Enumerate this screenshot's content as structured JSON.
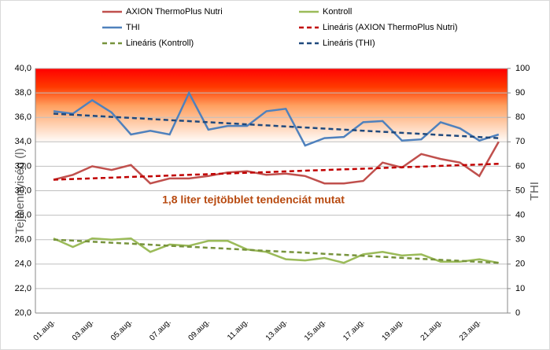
{
  "chart_data": {
    "type": "line",
    "categories": [
      "01.aug.",
      null,
      "03.aug.",
      null,
      "05.aug.",
      null,
      "07.aug.",
      null,
      "09.aug.",
      null,
      "11.aug.",
      null,
      "13.aug.",
      null,
      "15.aug.",
      null,
      "17.aug.",
      null,
      "19.aug.",
      null,
      "21.aug.",
      null,
      "23.aug.",
      null
    ],
    "series": [
      {
        "name": "AXION ThermoPlus Nutri",
        "color": "#c0504d",
        "dashed": false,
        "values": [
          30.9,
          31.3,
          32.0,
          31.7,
          32.1,
          30.6,
          31.0,
          31.0,
          31.2,
          31.5,
          31.6,
          31.3,
          31.4,
          31.2,
          30.6,
          30.6,
          30.8,
          32.3,
          31.9,
          33.0,
          32.6,
          32.3,
          31.2,
          34.0
        ]
      },
      {
        "name": "Kontroll",
        "color": "#9bbb59",
        "dashed": false,
        "values": [
          26.1,
          25.4,
          26.1,
          26.0,
          26.1,
          25.0,
          25.6,
          25.5,
          25.9,
          25.9,
          25.2,
          25.0,
          24.4,
          24.3,
          24.5,
          24.1,
          24.8,
          25.0,
          24.7,
          24.8,
          24.2,
          24.2,
          24.4,
          24.1
        ]
      },
      {
        "name": "THI",
        "color": "#4f81bd",
        "dashed": false,
        "axis": "y2",
        "values": [
          82.5,
          81.5,
          87,
          82,
          73,
          74.5,
          73,
          90,
          75,
          76.5,
          76.5,
          82.5,
          83.5,
          68.5,
          71.5,
          72,
          78,
          78.5,
          70.5,
          71,
          78,
          75.5,
          70.5,
          73
        ]
      },
      {
        "name": "Lineáris (AXION ThermoPlus Nutri)",
        "color": "#c00000",
        "dashed": true,
        "values": [
          30.9,
          30.96,
          31.01,
          31.07,
          31.13,
          31.18,
          31.24,
          31.3,
          31.35,
          31.41,
          31.47,
          31.52,
          31.58,
          31.64,
          31.69,
          31.75,
          31.8,
          31.86,
          31.92,
          31.97,
          32.03,
          32.09,
          32.14,
          32.2
        ]
      },
      {
        "name": "Lineáris (Kontroll)",
        "color": "#77933c",
        "dashed": true,
        "values": [
          26.0,
          25.92,
          25.83,
          25.75,
          25.67,
          25.59,
          25.5,
          25.42,
          25.34,
          25.26,
          25.17,
          25.09,
          25.01,
          24.93,
          24.84,
          24.76,
          24.68,
          24.6,
          24.51,
          24.43,
          24.35,
          24.27,
          24.18,
          24.1
        ]
      },
      {
        "name": "Lineáris (THI)",
        "color": "#1f497d",
        "dashed": true,
        "axis": "y2",
        "values": [
          81.5,
          81.07,
          80.63,
          80.2,
          79.76,
          79.33,
          78.89,
          78.46,
          78.02,
          77.59,
          77.15,
          76.72,
          76.28,
          75.85,
          75.41,
          74.98,
          74.54,
          74.11,
          73.67,
          73.24,
          72.8,
          72.37,
          71.93,
          71.5
        ]
      }
    ],
    "ylabel": "Tejmennyiség (l)",
    "y2label": "THI",
    "annotation": "1,8 liter tejtöbblet tendenciát mutat",
    "ylim": [
      20,
      40
    ],
    "yticks": [
      {
        "value": 20,
        "label": "20,0"
      },
      {
        "value": 22,
        "label": "22,0"
      },
      {
        "value": 24,
        "label": "24,0"
      },
      {
        "value": 26,
        "label": "26,0"
      },
      {
        "value": 28,
        "label": "28,0"
      },
      {
        "value": 30,
        "label": "30,0"
      },
      {
        "value": 32,
        "label": "32,0"
      },
      {
        "value": 34,
        "label": "34,0"
      },
      {
        "value": 36,
        "label": "36,0"
      },
      {
        "value": 38,
        "label": "38,0"
      },
      {
        "value": 40,
        "label": "40,0"
      }
    ],
    "y2lim": [
      0,
      100
    ],
    "y2ticks": [
      0,
      10,
      20,
      30,
      40,
      50,
      60,
      70,
      80,
      90,
      100
    ],
    "grid": true,
    "legend": "top"
  }
}
